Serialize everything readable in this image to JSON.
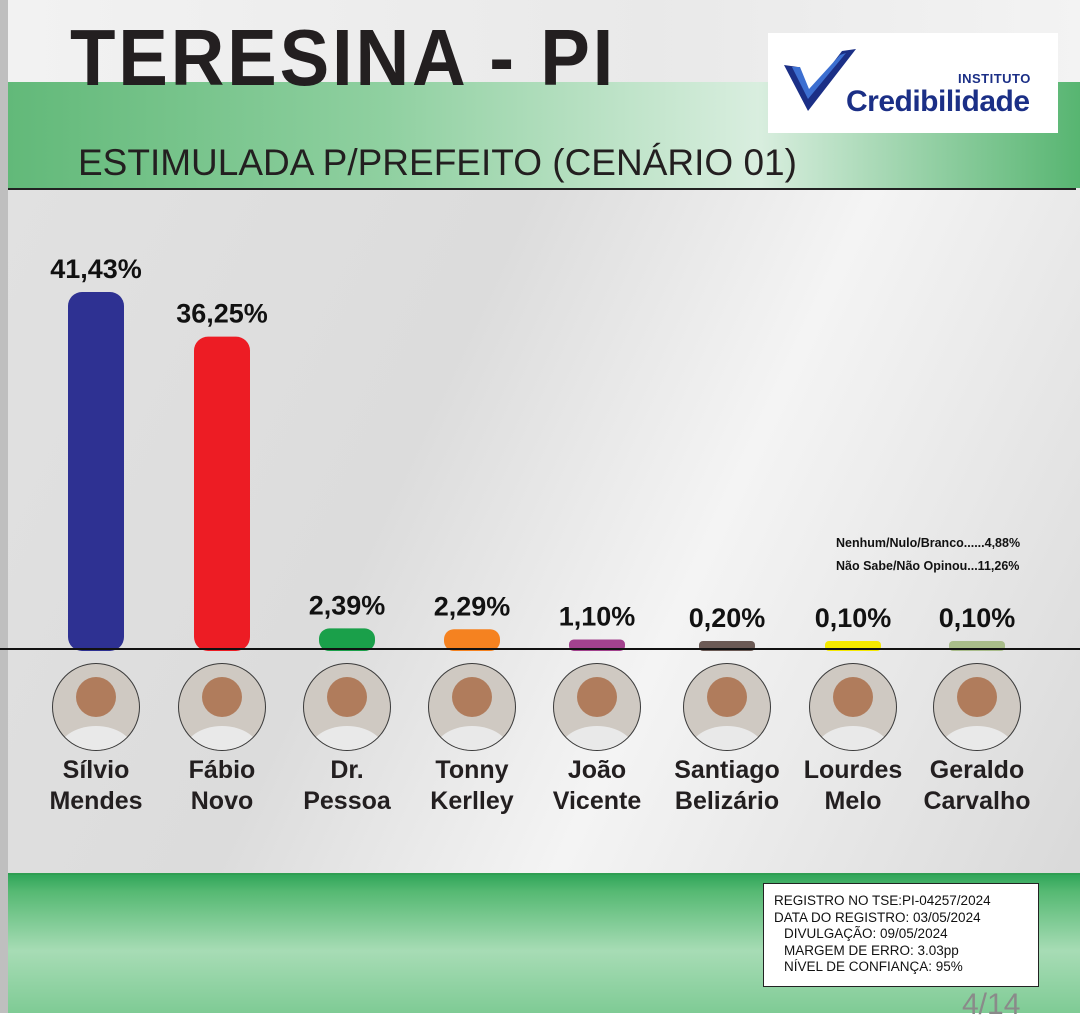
{
  "header": {
    "title": "TERESINA - PI",
    "subtitle": "ESTIMULADA P/PREFEITO (CENÁRIO 01)"
  },
  "logo": {
    "top_text": "INSTITUTO",
    "main_text": "Credibilidade"
  },
  "chart_data": {
    "type": "bar",
    "title": "ESTIMULADA P/PREFEITO (CENÁRIO 01)",
    "xlabel": "",
    "ylabel": "",
    "ylim": [
      0,
      41.43
    ],
    "grid": false,
    "legend": "none",
    "categories": [
      [
        "Sílvio",
        "Mendes"
      ],
      [
        "Fábio",
        "Novo"
      ],
      [
        "Dr.",
        "Pessoa"
      ],
      [
        "Tonny",
        "Kerlley"
      ],
      [
        "João",
        "Vicente"
      ],
      [
        "Santiago",
        "Belizário"
      ],
      [
        "Lourdes",
        "Melo"
      ],
      [
        "Geraldo",
        "Carvalho"
      ]
    ],
    "values": [
      41.43,
      36.25,
      2.39,
      2.29,
      1.1,
      0.2,
      0.1,
      0.1
    ],
    "value_labels": [
      "41,43%",
      "36,25%",
      "2,39%",
      "2,29%",
      "1,10%",
      "0,20%",
      "0,10%",
      "0,10%"
    ],
    "colors": [
      "#2e3192",
      "#ed1c24",
      "#1aa04a",
      "#f58220",
      "#a3428e",
      "#6b5a55",
      "#f5e900",
      "#a9bd8a"
    ],
    "others": [
      "Nenhum/Nulo/Branco......4,88%",
      "Não Sabe/Não Opinou...11,26%"
    ]
  },
  "footer": {
    "info": [
      "REGISTRO NO TSE:PI-04257/2024",
      "DATA DO REGISTRO: 03/05/2024",
      "DIVULGAÇÃO: 09/05/2024",
      "MARGEM DE ERRO: 3.03pp",
      "NÍVEL DE CONFIANÇA: 95%"
    ],
    "page": "4/14"
  }
}
